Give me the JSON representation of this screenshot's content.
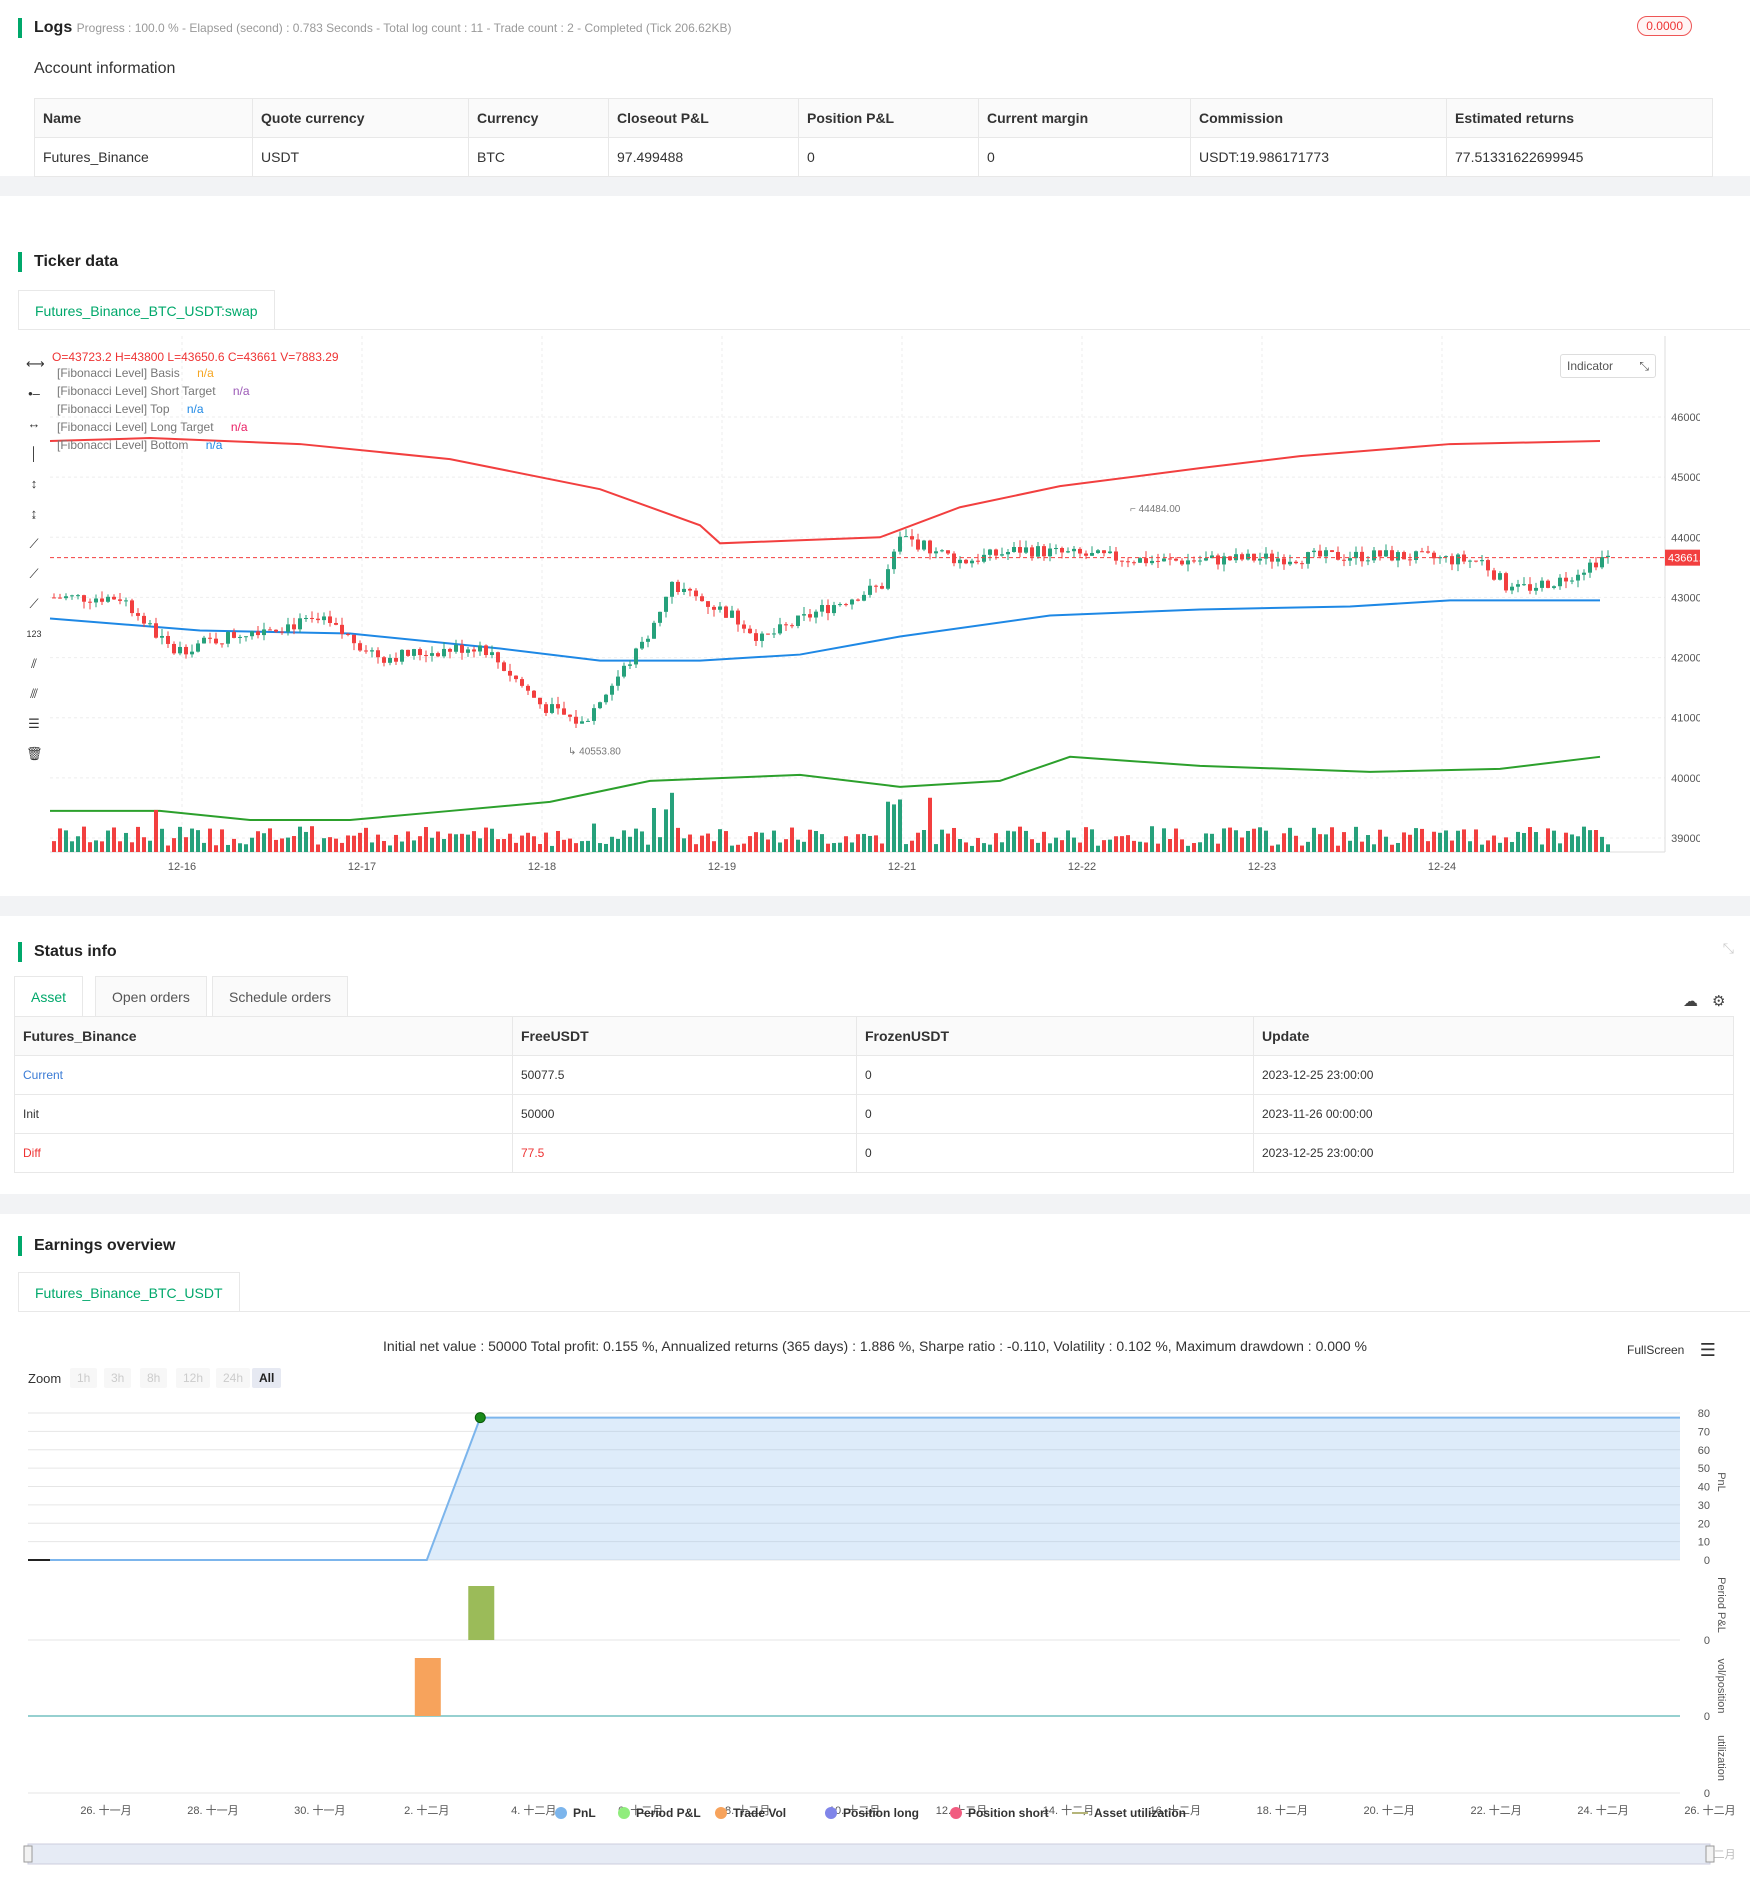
{
  "logs": {
    "title": "Logs",
    "progress": "Progress : 100.0 % - Elapsed (second) : 0.783  Seconds - Total log count : 11 - Trade count : 2 - Completed (Tick 206.62KB)",
    "badge": "0.0000"
  },
  "account": {
    "title": "Account information",
    "headers": [
      "Name",
      "Quote currency",
      "Currency",
      "Closeout P&L",
      "Position P&L",
      "Current margin",
      "Commission",
      "Estimated returns"
    ],
    "row": [
      "Futures_Binance",
      "USDT",
      "BTC",
      "97.499488",
      "0",
      "0",
      "USDT:19.986171773",
      "77.51331622699945"
    ]
  },
  "ticker": {
    "title": "Ticker data",
    "tab": "Futures_Binance_BTC_USDT:swap",
    "ohlc": "O=43723.2 H=43800 L=43650.6 C=43661 V=7883.29",
    "legend": [
      {
        "name": "[Fibonacci Level] Basis",
        "value": "n/a",
        "color": "#f5a623"
      },
      {
        "name": "[Fibonacci Level] Short Target",
        "value": "n/a",
        "color": "#9b59b6"
      },
      {
        "name": "[Fibonacci Level] Top",
        "value": "n/a",
        "color": "#1e88e5"
      },
      {
        "name": "[Fibonacci Level] Long Target",
        "value": "n/a",
        "color": "#e91e63"
      },
      {
        "name": "[Fibonacci Level] Bottom",
        "value": "n/a",
        "color": "#1e88e5"
      }
    ],
    "indicator_btn": "Indicator",
    "price_label": "43661.00",
    "high_marker": "44484.00",
    "low_marker": "40553.80",
    "y_ticks": [
      "46000.00",
      "45000.00",
      "44000.00",
      "43000.00",
      "42000.00",
      "41000.00",
      "40000.00",
      "39000.00"
    ],
    "x_ticks": [
      "12-16",
      "12-17",
      "12-18",
      "12-19",
      "12-21",
      "12-22",
      "12-23",
      "12-24"
    ]
  },
  "status": {
    "title": "Status info",
    "tabs": [
      "Asset",
      "Open orders",
      "Schedule orders"
    ],
    "headers": [
      "Futures_Binance",
      "FreeUSDT",
      "FrozenUSDT",
      "Update"
    ],
    "rows": [
      [
        "Current",
        "50077.5",
        "0",
        "2023-12-25 23:00:00"
      ],
      [
        "Init",
        "50000",
        "0",
        "2023-11-26 00:00:00"
      ],
      [
        "Diff",
        "77.5",
        "0",
        "2023-12-25 23:00:00"
      ]
    ]
  },
  "earnings": {
    "title": "Earnings overview",
    "tab": "Futures_Binance_BTC_USDT",
    "summary": "Initial net value : 50000 Total profit: 0.155 %, Annualized returns (365 days) : 1.886 %, Sharpe ratio : -0.110, Volatility : 0.102 %, Maximum drawdown : 0.000 %",
    "fullscreen": "FullScreen",
    "zoom_label": "Zoom",
    "zoom_buttons": [
      "1h",
      "3h",
      "8h",
      "12h",
      "24h",
      "All"
    ],
    "pnl_ticks": [
      "80",
      "70",
      "60",
      "50",
      "40",
      "30",
      "20",
      "10",
      "0"
    ],
    "axis_titles": [
      "PnL",
      "Period P&L",
      "vol/position",
      "utilization"
    ],
    "x_ticks": [
      "26. 十一月",
      "28. 十一月",
      "30. 十一月",
      "2. 十二月",
      "4. 十二月",
      "6. 十二月",
      "8. 十二月",
      "10. 十二月",
      "12. 十二月",
      "14. 十二月",
      "16. 十二月",
      "18. 十二月",
      "20. 十二月",
      "22. 十二月",
      "24. 十二月",
      "26. 十二月"
    ],
    "legend": [
      {
        "name": "PnL",
        "color": "#7cb5ec"
      },
      {
        "name": "Period P&L",
        "color": "#90ed7d"
      },
      {
        "name": "Trade Vol",
        "color": "#f7a35c"
      },
      {
        "name": "Position long",
        "color": "#8085e9"
      },
      {
        "name": "Position short",
        "color": "#f15c80"
      },
      {
        "name": "Asset utilization",
        "color": "#b5b57a"
      }
    ]
  },
  "chart_data": {
    "type": "line",
    "title": "",
    "x": [
      "2023-11-26",
      "2023-12-02",
      "2023-12-03",
      "2023-12-25"
    ],
    "series": [
      {
        "name": "PnL",
        "values": [
          0,
          0,
          77.5,
          77.5
        ]
      }
    ],
    "ylim": [
      0,
      80
    ]
  }
}
